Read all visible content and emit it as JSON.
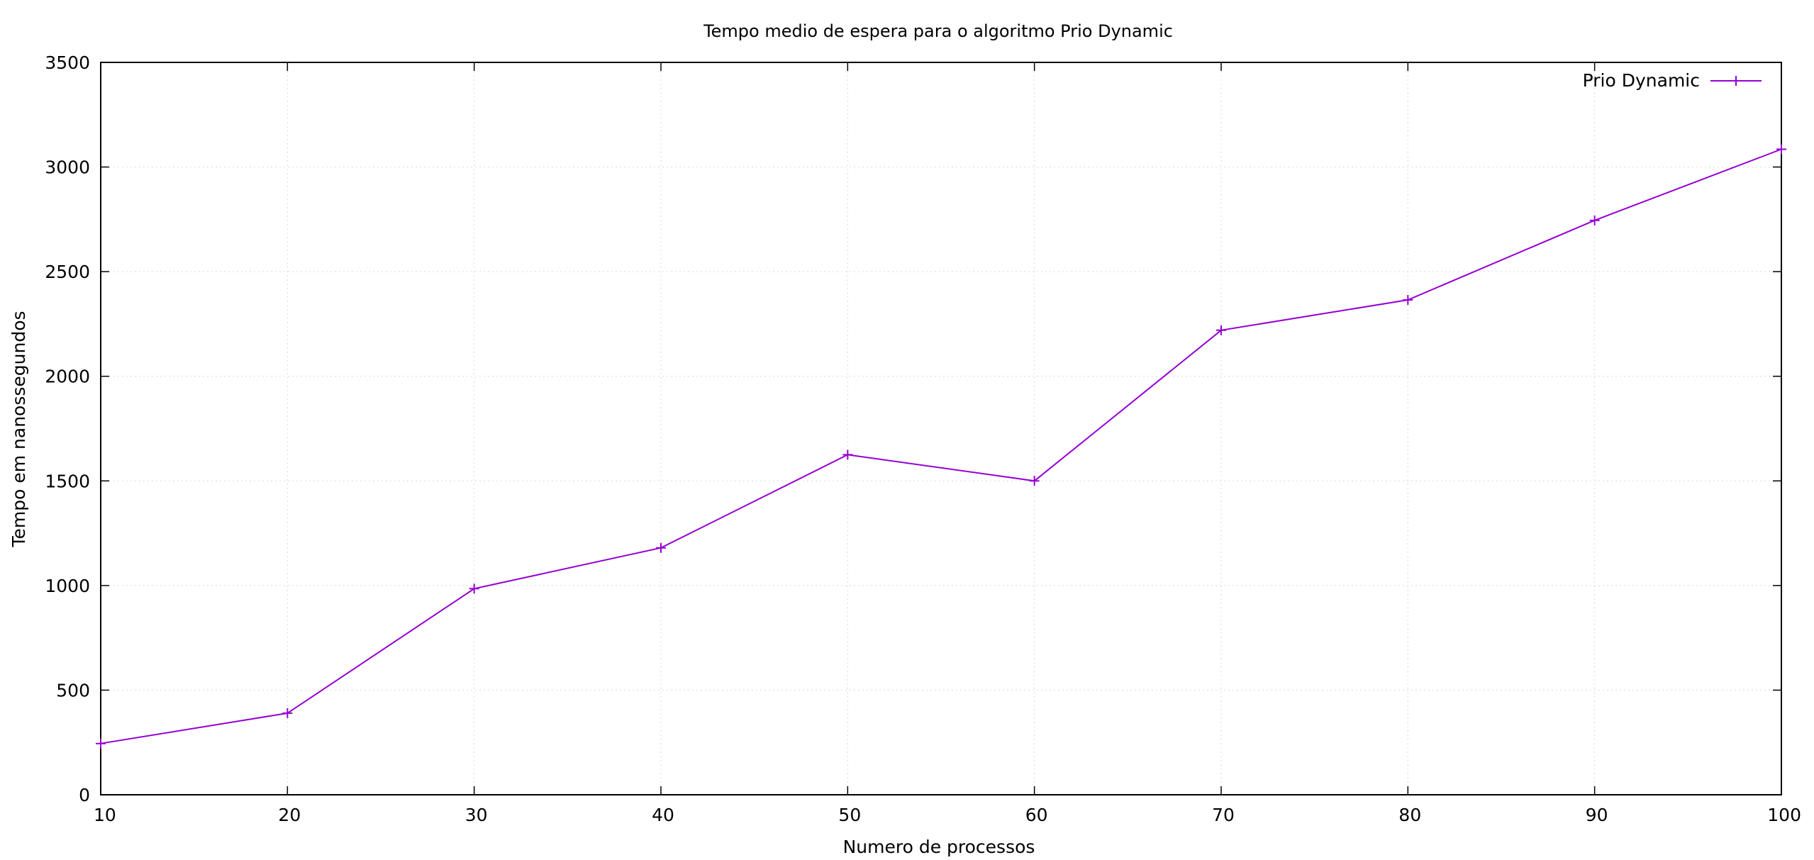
{
  "chart_data": {
    "type": "line",
    "title": "Tempo medio de espera para o algoritmo Prio Dynamic",
    "xlabel": "Numero de processos",
    "ylabel": "Tempo em nanossegundos",
    "xlim": [
      10,
      100
    ],
    "ylim": [
      0,
      3500
    ],
    "xticks": [
      10,
      20,
      30,
      40,
      50,
      60,
      70,
      80,
      90,
      100
    ],
    "yticks": [
      0,
      500,
      1000,
      1500,
      2000,
      2500,
      3000,
      3500
    ],
    "grid": true,
    "legend_position": "top-right",
    "series": [
      {
        "name": "Prio Dynamic",
        "color": "#9400d3",
        "marker": "plus",
        "x": [
          10,
          20,
          30,
          40,
          50,
          60,
          70,
          80,
          90,
          100
        ],
        "y": [
          245,
          390,
          985,
          1180,
          1625,
          1500,
          2220,
          2365,
          2745,
          3085
        ]
      }
    ]
  }
}
